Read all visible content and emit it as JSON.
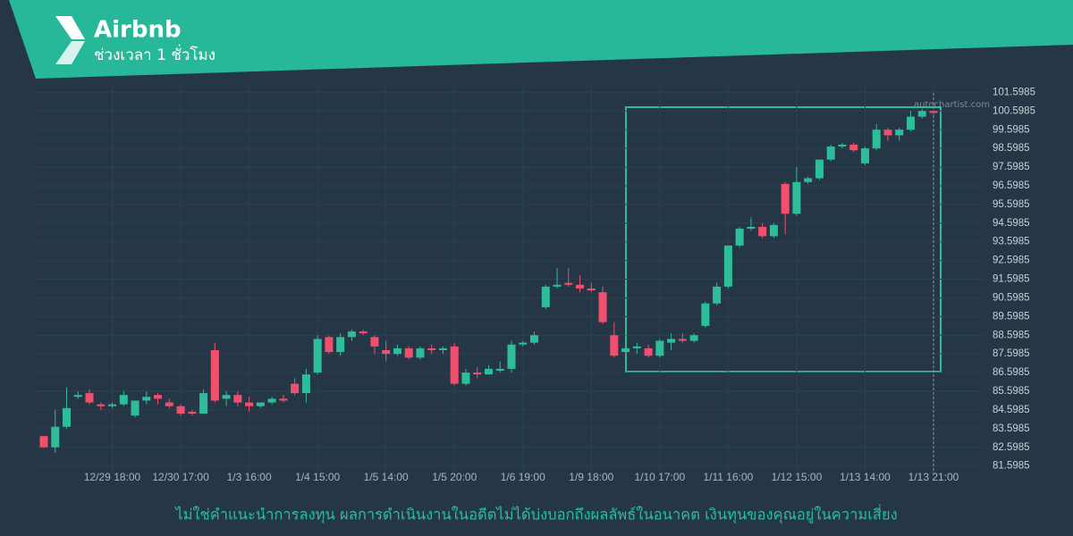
{
  "chart_data": {
    "type": "candlestick",
    "title": "Airbnb",
    "subtitle": "ช่วงเวลา 1 ชั่วโมง",
    "watermark": "autochartist.com",
    "footer": "ไม่ใช่คำแนะนำการลงทุน ผลการดำเนินงานในอดีตไม่ได้บ่งบอกถึงผลลัพธ์ในอนาคต เงินทุนของคุณอยู่ในความเสี่ยง",
    "up_color": "#2ebd9b",
    "down_color": "#f0506e",
    "categories": [
      null,
      null,
      null,
      null,
      null,
      null,
      "12/29 18:00",
      null,
      null,
      null,
      null,
      null,
      "12/30 17:00",
      null,
      null,
      null,
      null,
      null,
      "1/3 16:00",
      null,
      null,
      null,
      null,
      null,
      "1/4 15:00",
      null,
      null,
      null,
      null,
      null,
      "1/5 14:00",
      null,
      null,
      null,
      null,
      null,
      "1/5 20:00",
      null,
      null,
      null,
      null,
      null,
      "1/6 19:00",
      null,
      null,
      null,
      null,
      null,
      "1/9 18:00",
      null,
      null,
      null,
      null,
      null,
      "1/10 17:00",
      null,
      null,
      null,
      null,
      null,
      "1/11 16:00",
      null,
      null,
      null,
      null,
      null,
      "1/12 15:00",
      null,
      null,
      null,
      null,
      null,
      "1/13 14:00",
      null,
      null,
      null,
      null,
      null,
      "1/13 21:00"
    ],
    "open": [
      83.2,
      82.6,
      83.7,
      85.3,
      85.5,
      84.9,
      84.8,
      84.9,
      84.3,
      85.1,
      85.4,
      85.0,
      84.8,
      84.5,
      84.4,
      87.8,
      85.2,
      85.4,
      85.0,
      84.8,
      85.0,
      85.2,
      86.0,
      85.5,
      86.6,
      88.5,
      87.7,
      88.5,
      88.8,
      88.5,
      87.8,
      87.6,
      87.9,
      87.4,
      87.9,
      87.8,
      88.0,
      86.0,
      86.6,
      86.5,
      86.7,
      86.8,
      88.1,
      88.2,
      90.1,
      91.2,
      91.4,
      91.3,
      91.1,
      90.9,
      88.6,
      87.7,
      87.9,
      87.9,
      87.5,
      88.2,
      88.4,
      88.3,
      89.1,
      90.3,
      91.2,
      93.4,
      94.3,
      94.4,
      93.9,
      96.7,
      95.1,
      96.8,
      97.0,
      98.0,
      98.7,
      98.8,
      97.8,
      98.6,
      99.6,
      99.3,
      99.6,
      100.3,
      100.6
    ],
    "high": [
      83.2,
      84.6,
      85.8,
      85.6,
      85.7,
      85.0,
      85.0,
      85.6,
      85.1,
      85.6,
      85.5,
      85.2,
      84.9,
      84.6,
      85.7,
      88.2,
      85.6,
      85.6,
      85.3,
      85.0,
      85.3,
      85.4,
      86.3,
      86.8,
      88.6,
      88.6,
      88.7,
      88.9,
      88.9,
      88.6,
      88.3,
      88.1,
      88.0,
      88.0,
      88.1,
      88.0,
      88.2,
      86.8,
      86.9,
      87.0,
      87.2,
      88.3,
      88.3,
      88.8,
      91.3,
      92.2,
      92.2,
      91.8,
      91.4,
      91.2,
      89.3,
      88.9,
      88.2,
      88.1,
      88.4,
      88.7,
      88.7,
      88.7,
      90.4,
      91.4,
      93.4,
      94.4,
      94.9,
      94.6,
      94.6,
      96.8,
      97.6,
      97.1,
      98.0,
      98.8,
      98.9,
      98.9,
      98.7,
      99.9,
      99.7,
      99.7,
      100.6,
      100.7,
      100.6
    ],
    "low": [
      82.6,
      82.3,
      83.6,
      85.2,
      84.9,
      84.6,
      84.7,
      84.8,
      84.2,
      84.9,
      84.9,
      84.7,
      84.3,
      84.3,
      84.4,
      85.0,
      84.8,
      84.8,
      84.5,
      84.7,
      84.9,
      85.0,
      85.4,
      85.0,
      86.5,
      87.6,
      87.5,
      88.3,
      88.6,
      87.6,
      87.2,
      87.5,
      87.3,
      87.3,
      87.6,
      87.6,
      85.9,
      85.9,
      86.3,
      86.5,
      86.6,
      86.6,
      88.0,
      88.1,
      90.0,
      91.1,
      91.2,
      90.9,
      90.9,
      89.2,
      87.4,
      87.3,
      87.6,
      87.4,
      87.4,
      87.8,
      88.2,
      88.2,
      89.0,
      90.2,
      91.1,
      93.3,
      94.2,
      93.8,
      93.8,
      94.0,
      95.0,
      96.7,
      96.9,
      97.9,
      98.6,
      98.4,
      97.7,
      98.5,
      99.0,
      99.0,
      99.5,
      100.2,
      100.4
    ],
    "close": [
      82.6,
      83.7,
      84.7,
      85.4,
      85.0,
      84.8,
      84.9,
      85.4,
      85.1,
      85.3,
      85.2,
      84.8,
      84.4,
      84.4,
      85.5,
      85.1,
      85.4,
      85.0,
      84.8,
      85.0,
      85.2,
      85.1,
      85.5,
      86.5,
      88.4,
      87.7,
      88.5,
      88.8,
      88.7,
      88.0,
      87.6,
      87.9,
      87.4,
      87.9,
      87.8,
      87.9,
      86.0,
      86.6,
      86.5,
      86.8,
      86.8,
      88.1,
      88.2,
      88.6,
      91.2,
      91.3,
      91.3,
      91.1,
      91.0,
      89.3,
      87.5,
      87.9,
      88.0,
      87.5,
      88.3,
      88.4,
      88.3,
      88.6,
      90.3,
      91.2,
      93.4,
      94.3,
      94.4,
      93.9,
      94.5,
      95.1,
      96.8,
      97.0,
      98.0,
      98.7,
      98.8,
      98.5,
      98.6,
      99.6,
      99.3,
      99.6,
      100.3,
      100.6,
      100.5
    ],
    "ylim": [
      81.2,
      102.0
    ],
    "yticks": [
      81.5985,
      82.5985,
      83.5985,
      84.5985,
      85.5985,
      86.5985,
      87.5985,
      88.5985,
      89.5985,
      90.5985,
      91.5985,
      92.5985,
      93.5985,
      94.5985,
      95.5985,
      96.5985,
      97.5985,
      98.5985,
      99.5985,
      100.5985,
      101.5985
    ],
    "grid": true
  }
}
